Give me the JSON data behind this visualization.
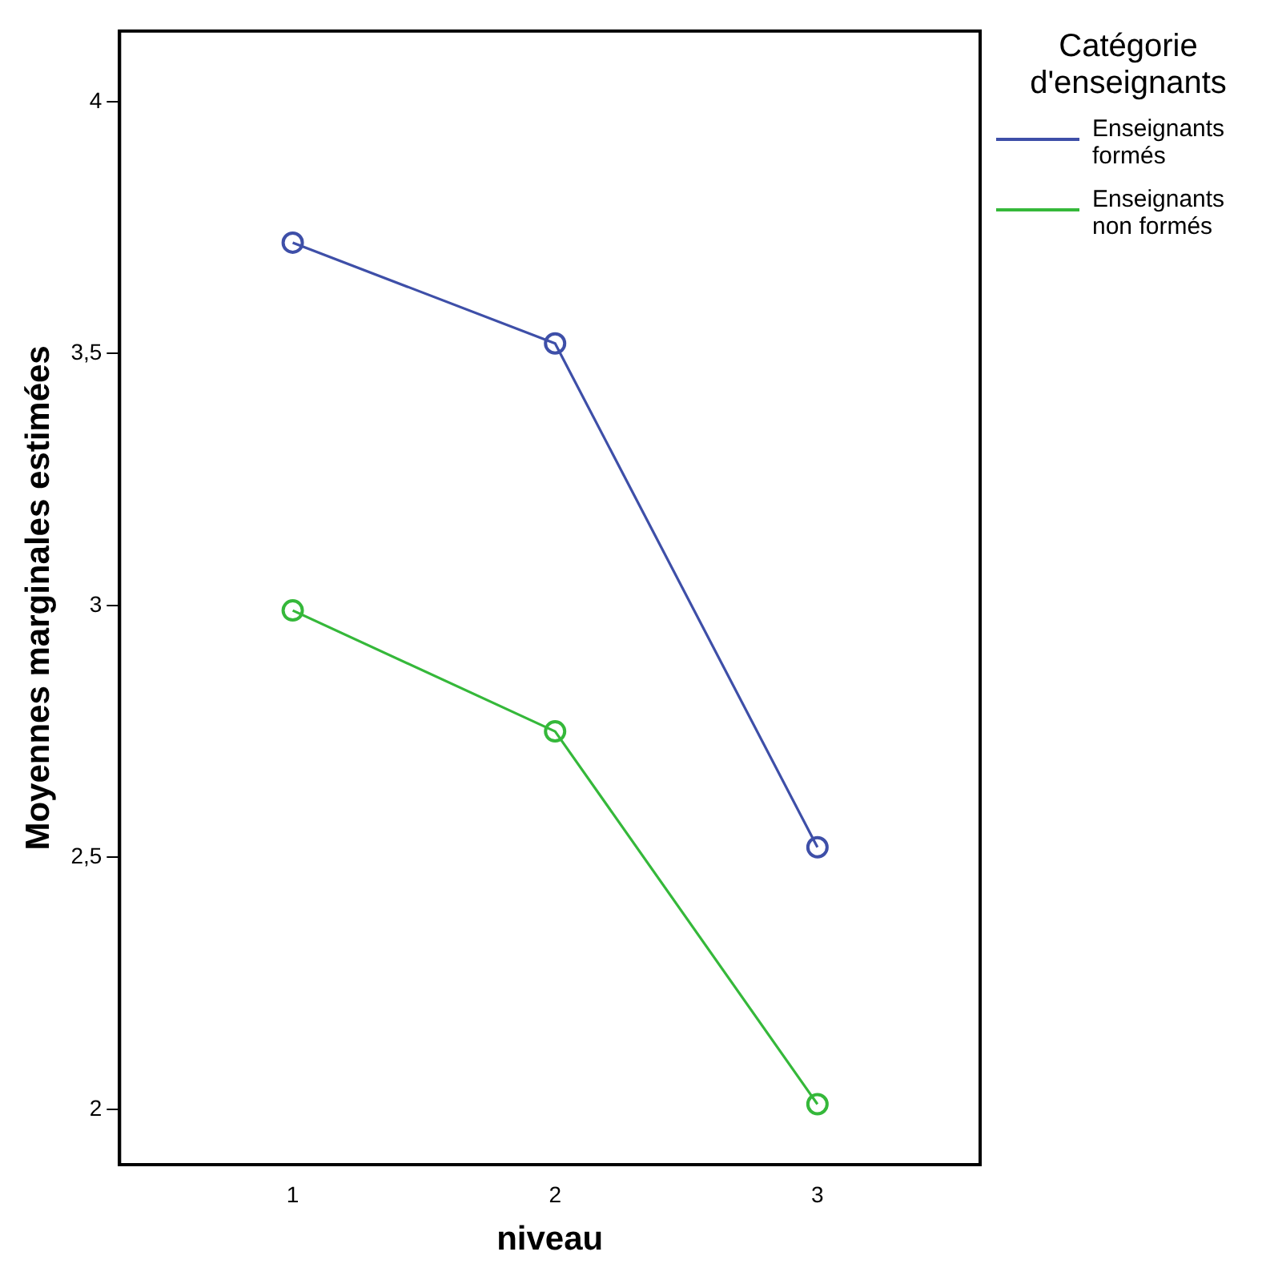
{
  "chart_data": {
    "type": "line",
    "xlabel": "niveau",
    "ylabel": "Moyennes marginales estimées",
    "legend_title": "Catégorie d'enseignants",
    "categories": [
      "1",
      "2",
      "3"
    ],
    "series": [
      {
        "name": "Enseignants formés",
        "color": "#3e4fa8",
        "values": [
          3.72,
          3.52,
          2.52
        ]
      },
      {
        "name": "Enseignants non formés",
        "color": "#35b83a",
        "values": [
          2.99,
          2.75,
          2.01
        ]
      }
    ],
    "ylim": [
      1.89,
      4.14
    ],
    "yticks": [
      {
        "value": 2,
        "label": "2"
      },
      {
        "value": 2.5,
        "label": "2,5"
      },
      {
        "value": 3,
        "label": "3"
      },
      {
        "value": 3.5,
        "label": "3,5"
      },
      {
        "value": 4,
        "label": "4"
      }
    ],
    "grid": false,
    "legend": "right",
    "marker": "circle",
    "line_style": "solid"
  }
}
